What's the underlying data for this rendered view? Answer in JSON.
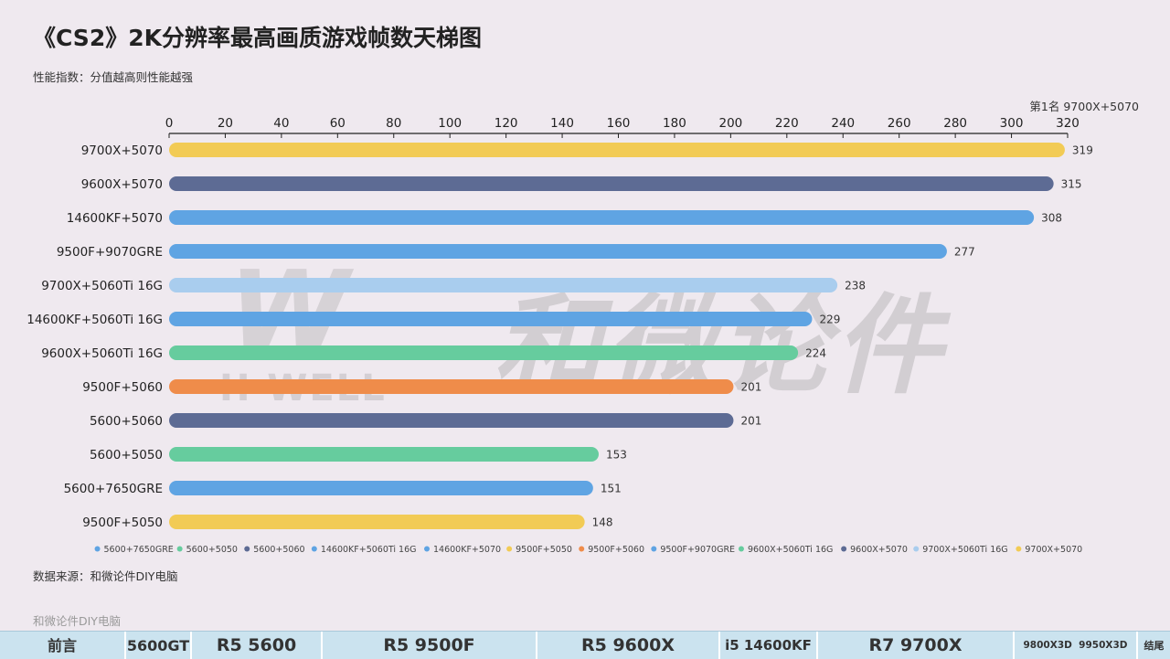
{
  "title": "《CS2》2K分辨率最高画质游戏帧数天梯图",
  "subtitle": "性能指数：分值越高则性能越强",
  "rank_note": "第1名 9700X+5070",
  "source": "数据来源：和微论件DIY电脑",
  "footer_brand": "和微论件DIY电脑",
  "watermark": {
    "cn": "和微论件",
    "en": "H-WELL",
    "logo": "W"
  },
  "nav": [
    {
      "label": "前言"
    },
    {
      "label": "5600GT"
    },
    {
      "label": "R5 5600"
    },
    {
      "label": "R5 9500F"
    },
    {
      "label": "R5 9600X"
    },
    {
      "label": "i5 14600KF"
    },
    {
      "label": "R7 9700X"
    },
    {
      "label": "9800X3D  9950X3D"
    },
    {
      "label": "结尾"
    }
  ],
  "chart_data": {
    "type": "bar",
    "orientation": "horizontal",
    "title": "《CS2》2K分辨率最高画质游戏帧数天梯图",
    "xlim": [
      0,
      320
    ],
    "x_ticks": [
      0,
      20,
      40,
      60,
      80,
      100,
      120,
      140,
      160,
      180,
      200,
      220,
      240,
      260,
      280,
      300,
      320
    ],
    "x_axis_position": "top",
    "grid": false,
    "legend_position": "bottom",
    "categories": [
      "9700X+5070",
      "9600X+5070",
      "14600KF+5070",
      "9500F+9070GRE",
      "9700X+5060Ti 16G",
      "14600KF+5060Ti 16G",
      "9600X+5060Ti 16G",
      "9500F+5060",
      "5600+5060",
      "5600+5050",
      "5600+7650GRE",
      "9500F+5050"
    ],
    "values": [
      319,
      315,
      308,
      277,
      238,
      229,
      224,
      201,
      201,
      153,
      151,
      148
    ],
    "colors": [
      "#f2cb55",
      "#5d6b94",
      "#5fa4e3",
      "#5fa4e3",
      "#a9cdee",
      "#5fa4e3",
      "#66cc9e",
      "#ef8c4a",
      "#5d6b94",
      "#66cc9e",
      "#5fa4e3",
      "#f2cb55"
    ],
    "legend": [
      {
        "name": "5600+7650GRE",
        "color": "#5fa4e3"
      },
      {
        "name": "5600+5050",
        "color": "#66cc9e"
      },
      {
        "name": "5600+5060",
        "color": "#5d6b94"
      },
      {
        "name": "14600KF+5060Ti 16G",
        "color": "#5fa4e3"
      },
      {
        "name": "14600KF+5070",
        "color": "#5fa4e3"
      },
      {
        "name": "9500F+5050",
        "color": "#f2cb55"
      },
      {
        "name": "9500F+5060",
        "color": "#ef8c4a"
      },
      {
        "name": "9500F+9070GRE",
        "color": "#5fa4e3"
      },
      {
        "name": "9600X+5060Ti 16G",
        "color": "#66cc9e"
      },
      {
        "name": "9600X+5070",
        "color": "#5d6b94"
      },
      {
        "name": "9700X+5060Ti 16G",
        "color": "#a9cdee"
      },
      {
        "name": "9700X+5070",
        "color": "#f2cb55"
      }
    ]
  }
}
